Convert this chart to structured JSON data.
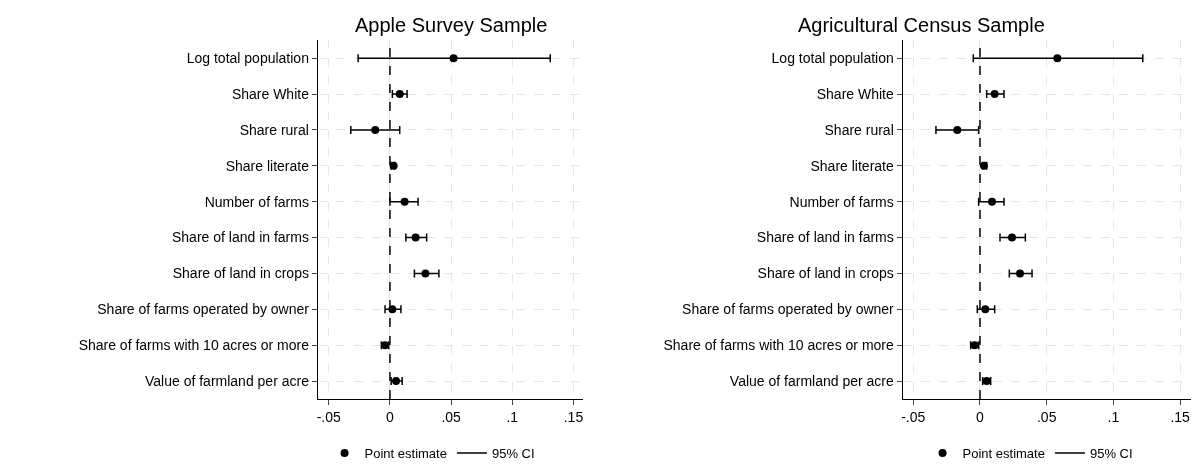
{
  "chart_data": [
    {
      "type": "scatter",
      "title": "Apple Survey Sample",
      "orientation": "horizontal",
      "categories": [
        "Log total population",
        "Share White",
        "Share rural",
        "Share literate",
        "Number of farms",
        "Share of land in farms",
        "Share of land in crops",
        "Share of farms operated by owner",
        "Share of farms with 10 acres or more",
        "Value of farmland per acre"
      ],
      "series": [
        {
          "name": "Point estimate",
          "color": "#000000",
          "values": [
            0.052,
            0.008,
            -0.012,
            0.003,
            0.012,
            0.021,
            0.029,
            0.002,
            -0.004,
            0.005
          ],
          "errors": [
            [
              -0.026,
              0.131
            ],
            [
              0.002,
              0.014
            ],
            [
              -0.032,
              0.008
            ],
            [
              0.001,
              0.004
            ],
            [
              0,
              0.023
            ],
            [
              0.013,
              0.03
            ],
            [
              0.02,
              0.04
            ],
            [
              -0.004,
              0.009
            ],
            [
              -0.007,
              -0.001
            ],
            [
              0.001,
              0.01
            ]
          ]
        }
      ],
      "xlim": [
        -0.059,
        0.158
      ],
      "xticks": [
        {
          "value": -0.05,
          "label": "-.05"
        },
        0,
        {
          "value": 0.05,
          "label": ".05"
        },
        {
          "value": 0.1,
          "label": ".1"
        },
        {
          "value": 0.15,
          "label": ".15"
        }
      ],
      "ref_lines": [
        {
          "axis": "x",
          "value": 0,
          "color": "#000000",
          "line_style": "dashed"
        }
      ],
      "annotations": [
        "95% CI"
      ],
      "marker": "circle",
      "grid": true,
      "legend": "bottom"
    },
    {
      "type": "scatter",
      "title": "Agricultural Census Sample",
      "orientation": "horizontal",
      "categories": [
        "Log total population",
        "Share White",
        "Share rural",
        "Share literate",
        "Number of farms",
        "Share of land in farms",
        "Share of land in crops",
        "Share of farms operated by owner",
        "Share of farms with 10 acres or more",
        "Value of farmland per acre"
      ],
      "series": [
        {
          "name": "Point estimate",
          "color": "#000000",
          "values": [
            0.058,
            0.011,
            -0.017,
            0.003,
            0.009,
            0.024,
            0.03,
            0.004,
            -0.004,
            0.005
          ],
          "errors": [
            [
              -0.005,
              0.122
            ],
            [
              0.005,
              0.018
            ],
            [
              -0.033,
              -0.001
            ],
            [
              0.002,
              0.005
            ],
            [
              -0.001,
              0.018
            ],
            [
              0.015,
              0.034
            ],
            [
              0.022,
              0.039
            ],
            [
              -0.002,
              0.011
            ],
            [
              -0.007,
              -0.001
            ],
            [
              0.002,
              0.008
            ]
          ]
        }
      ],
      "xlim": [
        -0.058,
        0.158
      ],
      "xticks": [
        {
          "value": -0.05,
          "label": "-.05"
        },
        0,
        {
          "value": 0.05,
          "label": ".05"
        },
        {
          "value": 0.1,
          "label": ".1"
        },
        {
          "value": 0.15,
          "label": ".15"
        }
      ],
      "ref_lines": [
        {
          "axis": "x",
          "value": 0,
          "color": "#000000",
          "line_style": "dashed"
        }
      ],
      "annotations": [
        "95% CI"
      ],
      "marker": "circle",
      "grid": true,
      "legend": "bottom"
    }
  ]
}
